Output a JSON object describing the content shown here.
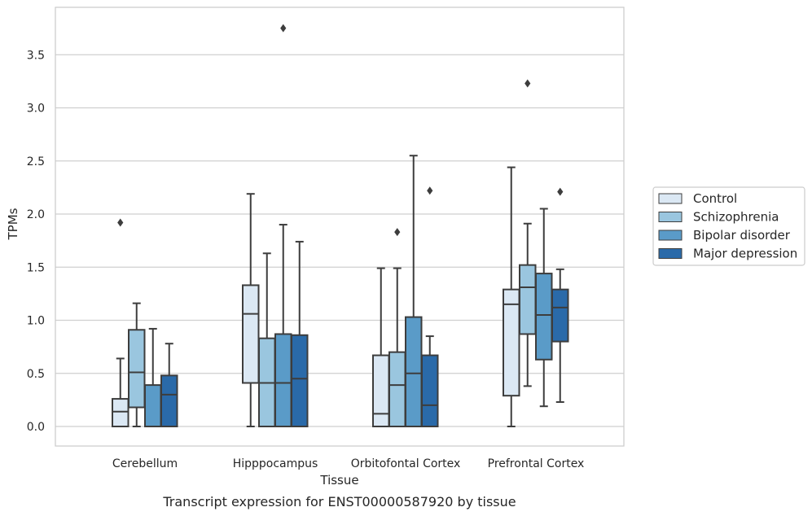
{
  "chart_data": {
    "type": "boxplot",
    "xlabel": "Tissue",
    "ylabel": "TPMs",
    "caption": "Transcript expression for ENST00000587920 by tissue",
    "ylim": [
      -0.18,
      3.9
    ],
    "yticks": [
      "0.0",
      "0.5",
      "1.0",
      "1.5",
      "2.0",
      "2.5",
      "3.0",
      "3.5"
    ],
    "categories": [
      "Cerebellum",
      "Hipppocampus",
      "Orbitofontal Cortex",
      "Prefrontal Cortex"
    ],
    "grid": "horizontal",
    "legend_position": "right",
    "series": [
      {
        "name": "Control",
        "color": "#dbe8f4",
        "boxes": [
          {
            "whislo": 0.0,
            "q1": 0.0,
            "med": 0.14,
            "q3": 0.26,
            "whishi": 0.64,
            "fliers": [
              1.92
            ]
          },
          {
            "whislo": 0.0,
            "q1": 0.41,
            "med": 1.06,
            "q3": 1.33,
            "whishi": 2.19,
            "fliers": []
          },
          {
            "whislo": 0.0,
            "q1": 0.0,
            "med": 0.12,
            "q3": 0.67,
            "whishi": 1.49,
            "fliers": []
          },
          {
            "whislo": 0.0,
            "q1": 0.29,
            "med": 1.15,
            "q3": 1.29,
            "whishi": 2.44,
            "fliers": []
          }
        ]
      },
      {
        "name": "Schizophrenia",
        "color": "#9ac6df",
        "boxes": [
          {
            "whislo": 0.0,
            "q1": 0.18,
            "med": 0.51,
            "q3": 0.91,
            "whishi": 1.16,
            "fliers": []
          },
          {
            "whislo": 0.0,
            "q1": 0.0,
            "med": 0.41,
            "q3": 0.83,
            "whishi": 1.63,
            "fliers": []
          },
          {
            "whislo": 0.0,
            "q1": 0.0,
            "med": 0.39,
            "q3": 0.7,
            "whishi": 1.49,
            "fliers": [
              1.83
            ]
          },
          {
            "whislo": 0.38,
            "q1": 0.87,
            "med": 1.31,
            "q3": 1.52,
            "whishi": 1.91,
            "fliers": [
              3.23
            ]
          }
        ]
      },
      {
        "name": "Bipolar disorder",
        "color": "#5a9bc8",
        "boxes": [
          {
            "whislo": 0.0,
            "q1": 0.0,
            "med": 0.0,
            "q3": 0.39,
            "whishi": 0.92,
            "fliers": []
          },
          {
            "whislo": 0.0,
            "q1": 0.0,
            "med": 0.41,
            "q3": 0.87,
            "whishi": 1.9,
            "fliers": [
              3.75
            ]
          },
          {
            "whislo": 0.0,
            "q1": 0.0,
            "med": 0.5,
            "q3": 1.03,
            "whishi": 2.55,
            "fliers": []
          },
          {
            "whislo": 0.19,
            "q1": 0.63,
            "med": 1.05,
            "q3": 1.44,
            "whishi": 2.05,
            "fliers": []
          }
        ]
      },
      {
        "name": "Major depression",
        "color": "#2a6aa9",
        "boxes": [
          {
            "whislo": 0.0,
            "q1": 0.0,
            "med": 0.3,
            "q3": 0.48,
            "whishi": 0.78,
            "fliers": []
          },
          {
            "whislo": 0.0,
            "q1": 0.0,
            "med": 0.45,
            "q3": 0.86,
            "whishi": 1.74,
            "fliers": []
          },
          {
            "whislo": 0.0,
            "q1": 0.0,
            "med": 0.2,
            "q3": 0.67,
            "whishi": 0.85,
            "fliers": [
              2.22
            ]
          },
          {
            "whislo": 0.23,
            "q1": 0.8,
            "med": 1.12,
            "q3": 1.29,
            "whishi": 1.48,
            "fliers": [
              2.21
            ]
          }
        ]
      }
    ]
  }
}
